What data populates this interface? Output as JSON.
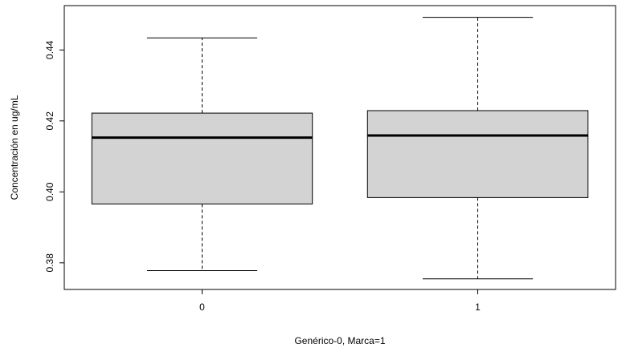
{
  "chart_data": {
    "type": "boxplot",
    "title": "",
    "xlabel": "Genérico-0, Marca=1",
    "ylabel": "Concentración en ug/mL",
    "categories": [
      "0",
      "1"
    ],
    "boxes": [
      {
        "category": "0",
        "whisker_low": 0.3778,
        "q1": 0.3966,
        "median": 0.4153,
        "q3": 0.4222,
        "whisker_high": 0.4434
      },
      {
        "category": "1",
        "whisker_low": 0.3755,
        "q1": 0.3984,
        "median": 0.4159,
        "q3": 0.4229,
        "whisker_high": 0.4492
      }
    ],
    "ylim": [
      0.3725,
      0.4525
    ],
    "yticks": [
      0.38,
      0.4,
      0.42,
      0.44
    ],
    "ytick_labels": [
      "0.38",
      "0.40",
      "0.42",
      "0.44"
    ],
    "grid": false,
    "legend": "none",
    "box_fill": "#d3d3d3",
    "stroke": "#000000"
  }
}
